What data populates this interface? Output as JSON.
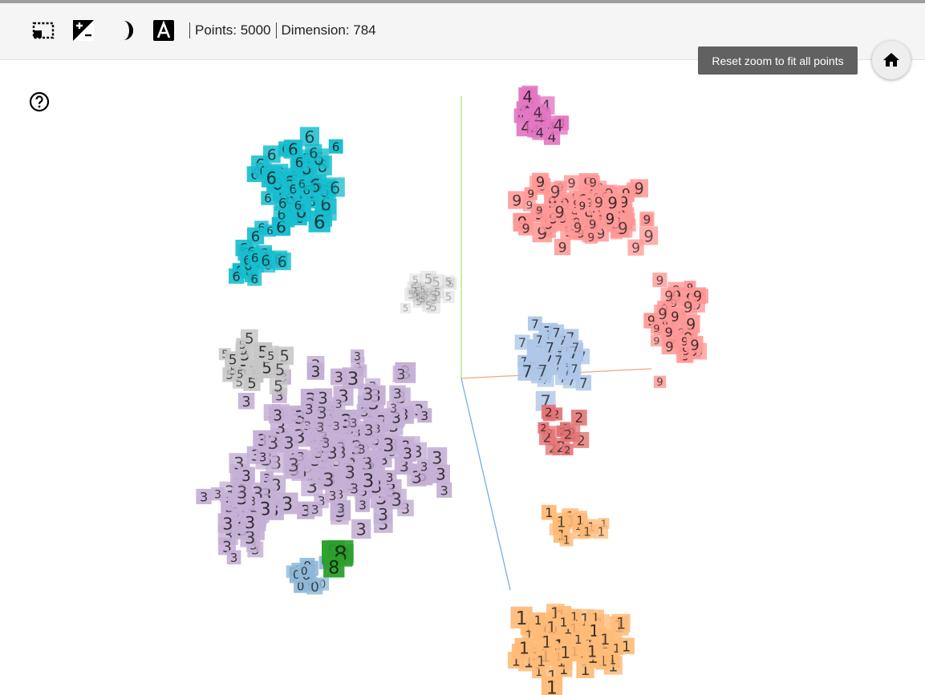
{
  "toolbar": {
    "tools": [
      {
        "icon": "selection-box-icon",
        "label": "Bounding box selection"
      },
      {
        "icon": "night-mode-icon",
        "label": "Toggle brightness"
      },
      {
        "icon": "contrast-icon",
        "label": "Contrast"
      },
      {
        "icon": "labels-icon",
        "label": "Show labels"
      }
    ],
    "points_label": "Points: 5000",
    "dimension_label": "Dimension: 784"
  },
  "tooltip": {
    "text": "Reset zoom to fit all points"
  },
  "home_button": {
    "icon": "home-icon"
  },
  "help": {
    "icon": "help-icon"
  },
  "projection": {
    "type": "scatter",
    "clusters": [
      {
        "label": "0",
        "color": "#8fb8d9"
      },
      {
        "label": "1",
        "color": "#ffbb78"
      },
      {
        "label": "2",
        "color": "#e37373"
      },
      {
        "label": "3",
        "color": "#c5b0d5"
      },
      {
        "label": "4",
        "color": "#e377c2"
      },
      {
        "label": "5",
        "color": "#c7c7c7"
      },
      {
        "label": "6",
        "color": "#17becf"
      },
      {
        "label": "7",
        "color": "#aec7e8"
      },
      {
        "label": "8",
        "color": "#2ca02c"
      },
      {
        "label": "9",
        "color": "#ff9896"
      }
    ]
  }
}
